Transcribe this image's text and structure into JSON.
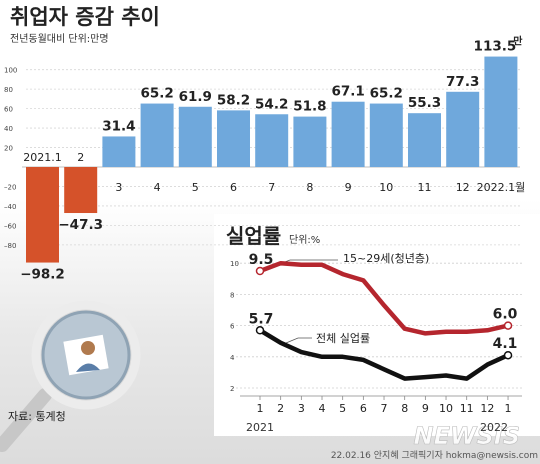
{
  "title": "취업자 증감 추이",
  "subtitle": "전년동월대비 단위:만명",
  "source": "자료: 통계청",
  "credit": "22.02.16 안지혜 그래픽기자 hokma@newsis.com",
  "watermark": "NEWSIS",
  "colors": {
    "bar_positive": "#6fa8dc",
    "bar_negative": "#d5522a",
    "youth_line": "#b5262e",
    "overall_line": "#111111"
  },
  "chart_data": [
    {
      "type": "bar",
      "title": "취업자 증감 추이",
      "subtitle": "전년동월대비 단위:만명",
      "categories": [
        "2021.1",
        "2",
        "3",
        "4",
        "5",
        "6",
        "7",
        "8",
        "9",
        "10",
        "11",
        "12",
        "2022.1월"
      ],
      "values": [
        -98.2,
        -47.3,
        31.4,
        65.2,
        61.9,
        58.2,
        54.2,
        51.8,
        67.1,
        65.2,
        55.3,
        77.3,
        113.5
      ],
      "value_labels": [
        "−98.2",
        "−47.3",
        "31.4",
        "65.2",
        "61.9",
        "58.2",
        "54.2",
        "51.8",
        "67.1",
        "65.2",
        "55.3",
        "77.3",
        "113.5"
      ],
      "last_value_suffix": "만",
      "yticks": [
        100,
        80,
        60,
        40,
        20,
        -20,
        -40,
        -60,
        -80
      ],
      "ytick_labels": [
        "100",
        "80",
        "60",
        "40",
        "20",
        "–20",
        "–40",
        "–60",
        "–80"
      ],
      "ylim": [
        -110,
        125
      ],
      "grid": true,
      "unit": "만명"
    },
    {
      "type": "line",
      "title": "실업률",
      "unit_label": "단위:%",
      "x": [
        "1",
        "2",
        "3",
        "4",
        "5",
        "6",
        "7",
        "8",
        "9",
        "10",
        "11",
        "12",
        "1"
      ],
      "year_labels": [
        "2021",
        "2022"
      ],
      "ylim": [
        2,
        10.5
      ],
      "yticks": [
        10,
        8,
        6,
        4,
        2
      ],
      "ytick_labels": [
        "10",
        "8",
        "6",
        "4",
        "2"
      ],
      "grid": true,
      "series": [
        {
          "name": "15~29세(청년층)",
          "color": "#b5262e",
          "values": [
            9.5,
            10.0,
            9.9,
            9.9,
            9.3,
            8.9,
            7.3,
            5.8,
            5.5,
            5.6,
            5.6,
            5.7,
            6.0
          ],
          "labels": [
            {
              "index": 0,
              "text": "9.5"
            },
            {
              "index": 12,
              "text": "6.0"
            }
          ]
        },
        {
          "name": "전체 실업률",
          "color": "#111111",
          "values": [
            5.7,
            4.9,
            4.3,
            4.0,
            4.0,
            3.8,
            3.2,
            2.6,
            2.7,
            2.8,
            2.6,
            3.5,
            4.1
          ],
          "labels": [
            {
              "index": 0,
              "text": "5.7"
            },
            {
              "index": 12,
              "text": "4.1"
            }
          ]
        }
      ]
    }
  ]
}
